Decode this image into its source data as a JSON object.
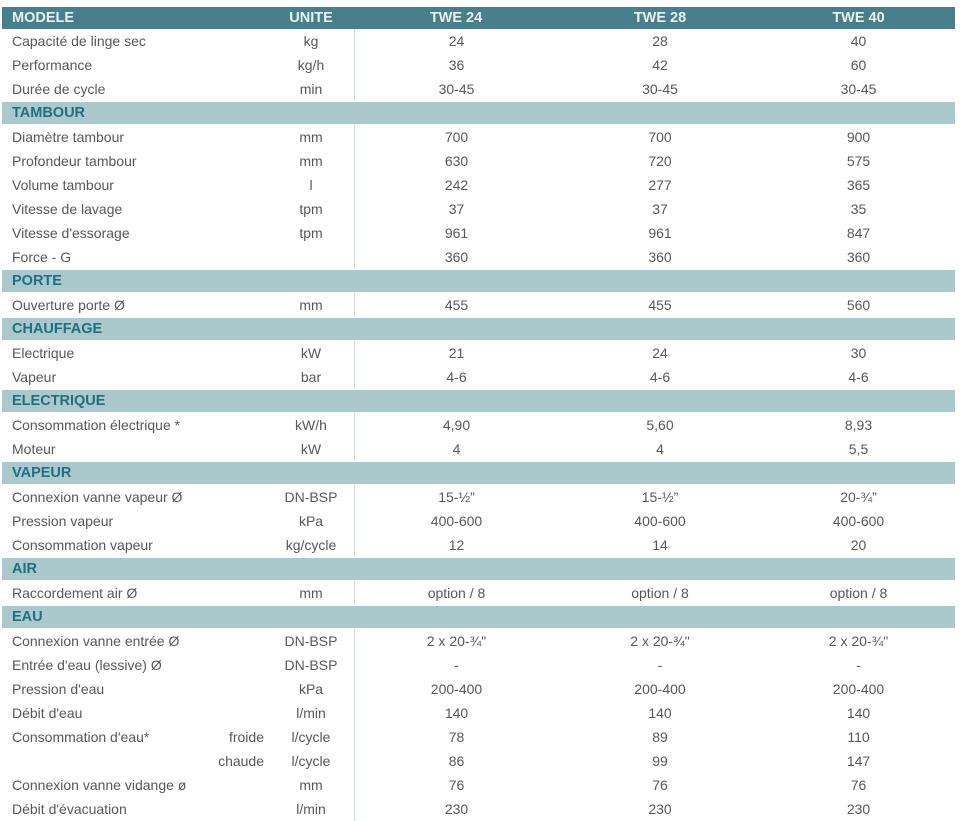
{
  "table": {
    "header": {
      "model_label": "MODELE",
      "unit_label": "UNITE",
      "models": [
        "TWE 24",
        "TWE 28",
        "TWE 40"
      ]
    },
    "sections": [
      {
        "title": "",
        "rows": [
          {
            "label": "Capacité de linge sec",
            "sublabel": "",
            "unit": "kg",
            "values": [
              "24",
              "28",
              "40"
            ]
          },
          {
            "label": "Performance",
            "sublabel": "",
            "unit": "kg/h",
            "values": [
              "36",
              "42",
              "60"
            ]
          },
          {
            "label": "Durée de cycle",
            "sublabel": "",
            "unit": "min",
            "values": [
              "30-45",
              "30-45",
              "30-45"
            ]
          }
        ]
      },
      {
        "title": "TAMBOUR",
        "rows": [
          {
            "label": "Diamètre tambour",
            "sublabel": "",
            "unit": "mm",
            "values": [
              "700",
              "700",
              "900"
            ]
          },
          {
            "label": "Profondeur tambour",
            "sublabel": "",
            "unit": "mm",
            "values": [
              "630",
              "720",
              "575"
            ]
          },
          {
            "label": "Volume tambour",
            "sublabel": "",
            "unit": "l",
            "values": [
              "242",
              "277",
              "365"
            ]
          },
          {
            "label": "Vitesse de lavage",
            "sublabel": "",
            "unit": "tpm",
            "values": [
              "37",
              "37",
              "35"
            ]
          },
          {
            "label": "Vitesse d'essorage",
            "sublabel": "",
            "unit": "tpm",
            "values": [
              "961",
              "961",
              "847"
            ]
          },
          {
            "label": "Force - G",
            "sublabel": "",
            "unit": "",
            "values": [
              "360",
              "360",
              "360"
            ]
          }
        ]
      },
      {
        "title": "PORTE",
        "rows": [
          {
            "label": "Ouverture porte Ø",
            "sublabel": "",
            "unit": "mm",
            "values": [
              "455",
              "455",
              "560"
            ]
          }
        ]
      },
      {
        "title": "CHAUFFAGE",
        "rows": [
          {
            "label": "Electrique",
            "sublabel": "",
            "unit": "kW",
            "values": [
              "21",
              "24",
              "30"
            ]
          },
          {
            "label": "Vapeur",
            "sublabel": "",
            "unit": "bar",
            "values": [
              "4-6",
              "4-6",
              "4-6"
            ]
          }
        ]
      },
      {
        "title": "ELECTRIQUE",
        "rows": [
          {
            "label": "Consommation électrique *",
            "sublabel": "",
            "unit": "kW/h",
            "values": [
              "4,90",
              "5,60",
              "8,93"
            ]
          },
          {
            "label": "Moteur",
            "sublabel": "",
            "unit": "kW",
            "values": [
              "4",
              "4",
              "5,5"
            ]
          }
        ]
      },
      {
        "title": "VAPEUR",
        "rows": [
          {
            "label": "Connexion vanne vapeur Ø",
            "sublabel": "",
            "unit": "DN-BSP",
            "values": [
              "15-½”",
              "15-½”",
              "20-¾”"
            ]
          },
          {
            "label": "Pression vapeur",
            "sublabel": "",
            "unit": "kPa",
            "values": [
              "400-600",
              "400-600",
              "400-600"
            ]
          },
          {
            "label": "Consommation vapeur",
            "sublabel": "",
            "unit": "kg/cycle",
            "values": [
              "12",
              "14",
              "20"
            ]
          }
        ]
      },
      {
        "title": "AIR",
        "rows": [
          {
            "label": "Raccordement air Ø",
            "sublabel": "",
            "unit": "mm",
            "values": [
              "option / 8",
              "option / 8",
              "option / 8"
            ]
          }
        ]
      },
      {
        "title": "EAU",
        "rows": [
          {
            "label": "Connexion vanne entrée Ø",
            "sublabel": "",
            "unit": "DN-BSP",
            "values": [
              "2 x 20-¾\"",
              "2 x 20-¾\"",
              "2 x 20-¾\""
            ]
          },
          {
            "label": "Entrée d'eau (lessive) Ø",
            "sublabel": "",
            "unit": "DN-BSP",
            "values": [
              "-",
              "-",
              "-"
            ]
          },
          {
            "label": "Pression d'eau",
            "sublabel": "",
            "unit": "kPa",
            "values": [
              "200-400",
              "200-400",
              "200-400"
            ]
          },
          {
            "label": "Débit d'eau",
            "sublabel": "",
            "unit": "l/min",
            "values": [
              "140",
              "140",
              "140"
            ]
          },
          {
            "label": "Consommation d'eau*",
            "sublabel": "froide",
            "unit": "l/cycle",
            "values": [
              "78",
              "89",
              "110"
            ]
          },
          {
            "label": "",
            "sublabel": "chaude",
            "unit": "l/cycle",
            "values": [
              "86",
              "99",
              "147"
            ]
          },
          {
            "label": "Connexion vanne vidange ø",
            "sublabel": "",
            "unit": "mm",
            "values": [
              "76",
              "76",
              "76"
            ]
          },
          {
            "label": "Débit d'évacuation",
            "sublabel": "",
            "unit": "l/min",
            "values": [
              "230",
              "230",
              "230"
            ]
          }
        ]
      }
    ],
    "colors": {
      "header_bg": "#47808a",
      "header_text": "#e9f1f2",
      "band_bg": "#abc9cc",
      "band_text": "#1f6f7f",
      "body_text": "#55585c",
      "divider": "#ccdcdf"
    }
  }
}
